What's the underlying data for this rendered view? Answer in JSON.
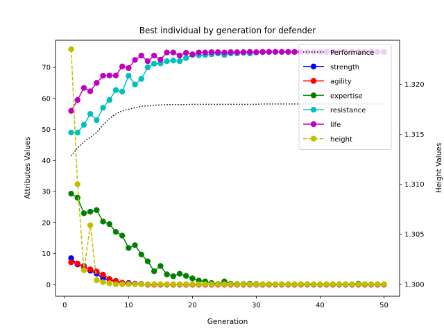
{
  "chart_data": {
    "type": "line",
    "title": "Best individual by generation for defender",
    "xlabel": "Generation",
    "ylabel": "Attributes Values",
    "y2label": "Height Values",
    "xlim": [
      -1.45,
      52.45
    ],
    "ylim": [
      -3.75,
      78.75
    ],
    "y2lim": [
      1.2988,
      1.3244
    ],
    "xticks": [
      0,
      10,
      20,
      30,
      40,
      50
    ],
    "yticks": [
      0,
      10,
      20,
      30,
      40,
      50,
      60,
      70
    ],
    "y2ticks": [
      1.3,
      1.305,
      1.31,
      1.315,
      1.32
    ],
    "y2tick_labels": [
      "1.300",
      "1.305",
      "1.310",
      "1.315",
      "1.320"
    ],
    "legend_position": "top-right",
    "x": [
      1,
      2,
      3,
      4,
      5,
      6,
      7,
      8,
      9,
      10,
      11,
      12,
      13,
      14,
      15,
      16,
      17,
      18,
      19,
      20,
      21,
      22,
      23,
      24,
      25,
      26,
      27,
      28,
      29,
      30,
      31,
      32,
      33,
      34,
      35,
      36,
      37,
      38,
      39,
      40,
      41,
      42,
      43,
      44,
      45,
      46,
      47,
      48,
      49,
      50
    ],
    "series": [
      {
        "name": "Performance",
        "color": "#000000",
        "style": "dotted",
        "marker": "none",
        "axis": "left",
        "values": [
          41.5,
          44,
          46,
          47.5,
          49,
          51.5,
          53.5,
          55,
          56,
          56.5,
          57,
          57.5,
          57.6,
          57.8,
          57.9,
          58,
          58,
          58,
          58,
          58.1,
          58.1,
          58.1,
          58.1,
          58.1,
          58.1,
          58.1,
          58.1,
          58.1,
          58.1,
          58.1,
          58.2,
          58.2,
          58.2,
          58.2,
          58.2,
          58.2,
          58.2,
          58.2,
          58.2,
          58.2,
          58.2,
          58.2,
          58.2,
          58.2,
          58.2,
          58.2,
          58.2,
          58.2,
          58.2,
          58.2
        ]
      },
      {
        "name": "strength",
        "color": "#0000ff",
        "style": "solid",
        "marker": "circle",
        "axis": "left",
        "values": [
          8.5,
          6.5,
          6,
          4.5,
          3.5,
          2,
          1.5,
          1,
          0.5,
          0.5,
          0.3,
          0.2,
          0,
          0,
          0,
          0,
          0,
          0,
          0,
          0,
          0,
          0,
          0,
          0,
          0,
          0,
          0,
          0,
          0,
          0,
          0,
          0,
          0,
          0,
          0,
          0,
          0,
          0,
          0,
          0,
          0,
          0,
          0,
          0,
          0,
          0,
          0,
          0,
          0,
          0
        ]
      },
      {
        "name": "agility",
        "color": "#ff0000",
        "style": "solid",
        "marker": "circle",
        "axis": "left",
        "values": [
          7.2,
          6.8,
          5.7,
          4.9,
          4.2,
          3.2,
          1.8,
          1.2,
          0.6,
          0.3,
          0.2,
          0.1,
          0,
          0,
          0,
          0,
          0,
          0,
          0,
          0,
          0,
          0,
          0,
          0,
          0,
          0,
          0,
          0,
          0,
          0,
          0,
          0,
          0,
          0,
          0,
          0,
          0,
          0,
          0,
          0,
          0,
          0,
          0,
          0,
          0,
          0,
          0,
          0,
          0,
          0
        ]
      },
      {
        "name": "expertise",
        "color": "#008000",
        "style": "solid",
        "marker": "circle",
        "axis": "left",
        "values": [
          29.3,
          28,
          23,
          23.5,
          24,
          20.3,
          19.5,
          17,
          15.8,
          11.8,
          12.7,
          9.7,
          7.5,
          4.3,
          6,
          3.3,
          2.7,
          3.5,
          2.8,
          2,
          1.3,
          1,
          0.5,
          0.2,
          1,
          0.3,
          0.2,
          0.2,
          0.3,
          0.2,
          0.1,
          0.1,
          0.1,
          0.1,
          0.1,
          0.1,
          0.1,
          0.1,
          0.1,
          0.1,
          0.1,
          0.1,
          0.1,
          0.1,
          0.1,
          0.3,
          0.1,
          0.1,
          0.1,
          0.1
        ]
      },
      {
        "name": "resistance",
        "color": "#00bfbf",
        "style": "solid",
        "marker": "circle",
        "axis": "left",
        "values": [
          49,
          49,
          51.5,
          55,
          53,
          57,
          59.5,
          62.7,
          62.2,
          67.3,
          64.5,
          66.3,
          70,
          71.2,
          71.3,
          72,
          72.2,
          72,
          73,
          74,
          73.9,
          74,
          74.2,
          74.5,
          74,
          74.5,
          74.5,
          74.7,
          74.5,
          74.8,
          74.9,
          75,
          75,
          75,
          75,
          75,
          75,
          75,
          75,
          75,
          75,
          75,
          75,
          75,
          75,
          75,
          75,
          75,
          75,
          75
        ]
      },
      {
        "name": "life",
        "color": "#bf00bf",
        "style": "solid",
        "marker": "circle",
        "axis": "left",
        "values": [
          56,
          59.5,
          63.4,
          62.3,
          65,
          67.3,
          67.4,
          67.4,
          70.3,
          69.8,
          72.4,
          73.8,
          72,
          73.8,
          72.5,
          74.8,
          74.8,
          73.8,
          74.7,
          74.2,
          74.8,
          74.8,
          74.9,
          74.9,
          74.8,
          74.9,
          74.9,
          74.9,
          75,
          74.9,
          75,
          75,
          75,
          75,
          75,
          75,
          75,
          75,
          75,
          75,
          75,
          75,
          75,
          75,
          75,
          75,
          75,
          75,
          75,
          75
        ]
      },
      {
        "name": "height",
        "color": "#bfbf00",
        "style": "dashed",
        "marker": "circle",
        "axis": "right",
        "values": [
          1.3235,
          1.31,
          1.3014,
          1.3059,
          1.3004,
          1.3002,
          1.3001,
          1.3,
          1.3,
          1.3,
          1.3,
          1.3,
          1.3,
          1.3,
          1.3,
          1.3,
          1.3,
          1.3,
          1.3,
          1.3,
          1.3,
          1.3,
          1.3,
          1.3,
          1.3,
          1.3,
          1.3,
          1.3,
          1.3,
          1.3,
          1.3,
          1.3,
          1.3,
          1.3,
          1.3,
          1.3,
          1.3,
          1.3,
          1.3,
          1.3,
          1.3,
          1.3,
          1.3,
          1.3,
          1.3,
          1.3,
          1.3,
          1.3,
          1.3,
          1.3
        ]
      }
    ]
  }
}
